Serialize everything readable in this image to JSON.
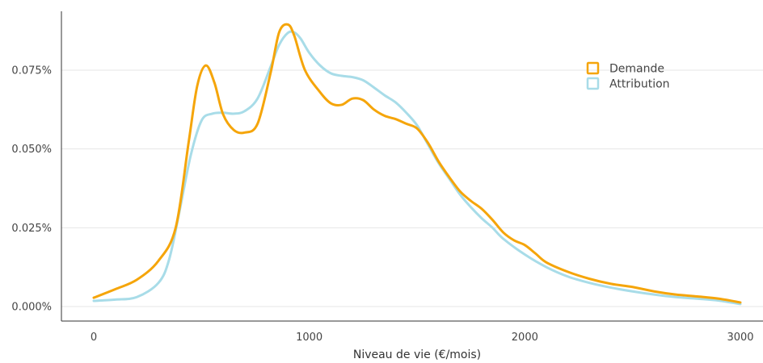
{
  "chart_data": {
    "type": "line",
    "title": "",
    "xlabel": "Niveau de vie (€/mois)",
    "ylabel": "",
    "xlim": [
      -150,
      3100
    ],
    "ylim": [
      0,
      0.09
    ],
    "x_ticks": [
      0,
      1000,
      2000,
      3000
    ],
    "x_tick_labels": [
      "0",
      "1000",
      "2000",
      "3000"
    ],
    "y_ticks": [
      0,
      0.025,
      0.05,
      0.075
    ],
    "y_tick_labels": [
      "0.000%",
      "0.025%",
      "0.050%",
      "0.075%"
    ],
    "grid": "horizontal",
    "legend_position": "top-right",
    "series": [
      {
        "name": "Demande",
        "color": "#F5A50A",
        "x": [
          0,
          100,
          200,
          300,
          380,
          440,
          480,
          520,
          560,
          600,
          650,
          700,
          760,
          820,
          860,
          900,
          930,
          980,
          1050,
          1100,
          1150,
          1200,
          1250,
          1300,
          1350,
          1400,
          1450,
          1500,
          1550,
          1600,
          1650,
          1700,
          1750,
          1800,
          1850,
          1900,
          1950,
          2000,
          2050,
          2100,
          2200,
          2300,
          2400,
          2500,
          2600,
          2700,
          2800,
          2900,
          3000
        ],
        "y": [
          0.0028,
          0.0055,
          0.0085,
          0.0145,
          0.025,
          0.052,
          0.07,
          0.0765,
          0.071,
          0.061,
          0.056,
          0.0552,
          0.058,
          0.074,
          0.087,
          0.0895,
          0.086,
          0.075,
          0.068,
          0.0645,
          0.064,
          0.066,
          0.0655,
          0.0625,
          0.0605,
          0.0595,
          0.058,
          0.0565,
          0.052,
          0.046,
          0.041,
          0.0365,
          0.0335,
          0.031,
          0.0275,
          0.0235,
          0.021,
          0.0195,
          0.0168,
          0.014,
          0.011,
          0.0088,
          0.0072,
          0.0062,
          0.0048,
          0.0038,
          0.0032,
          0.0025,
          0.0013
        ]
      },
      {
        "name": "Attribution",
        "color": "#A8DCE8",
        "x": [
          0,
          100,
          200,
          300,
          350,
          400,
          450,
          500,
          550,
          600,
          650,
          700,
          760,
          820,
          860,
          900,
          930,
          960,
          1000,
          1050,
          1100,
          1150,
          1200,
          1250,
          1300,
          1350,
          1400,
          1450,
          1500,
          1550,
          1600,
          1650,
          1700,
          1750,
          1800,
          1850,
          1900,
          2000,
          2100,
          2200,
          2300,
          2400,
          2500,
          2600,
          2700,
          2800,
          2900,
          3000
        ],
        "y": [
          0.0018,
          0.0022,
          0.003,
          0.0075,
          0.015,
          0.031,
          0.048,
          0.059,
          0.0612,
          0.0615,
          0.0612,
          0.062,
          0.066,
          0.076,
          0.083,
          0.0868,
          0.087,
          0.085,
          0.0805,
          0.0765,
          0.074,
          0.0732,
          0.0728,
          0.0718,
          0.0695,
          0.067,
          0.0648,
          0.0615,
          0.0575,
          0.0515,
          0.0455,
          0.0405,
          0.0355,
          0.0315,
          0.028,
          0.025,
          0.0215,
          0.0165,
          0.0125,
          0.0095,
          0.0075,
          0.006,
          0.0048,
          0.0038,
          0.003,
          0.0025,
          0.0019,
          0.0008
        ]
      }
    ]
  }
}
